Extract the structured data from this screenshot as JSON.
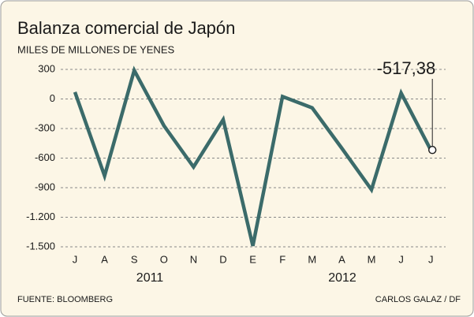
{
  "chart_data": {
    "type": "line",
    "title": "Balanza comercial de Japón",
    "subtitle": "MILES DE MILLONES DE YENES",
    "categories": [
      "J",
      "A",
      "S",
      "O",
      "N",
      "D",
      "E",
      "F",
      "M",
      "A",
      "M",
      "J",
      "J"
    ],
    "x_groups": [
      "2011",
      "2012"
    ],
    "series": [
      {
        "name": null,
        "color": "#3b6b6a",
        "values": [
          70,
          -780,
          290,
          -270,
          -690,
          -210,
          -1490,
          25,
          -90,
          -500,
          -920,
          60,
          -517.38
        ],
        "value_labels": [
          null,
          null,
          null,
          null,
          null,
          null,
          null,
          null,
          null,
          null,
          null,
          null,
          "-517,38"
        ]
      }
    ],
    "ylim": [
      -1500,
      300
    ],
    "yticks": [
      300,
      0,
      -300,
      -600,
      -900,
      {
        "value": -1200,
        "label": "-1.200"
      },
      {
        "value": -1500,
        "label": "-1.500"
      }
    ],
    "grid": true,
    "source": "FUENTE: BLOOMBERG",
    "credit": "CARLOS GALAZ / DF"
  }
}
